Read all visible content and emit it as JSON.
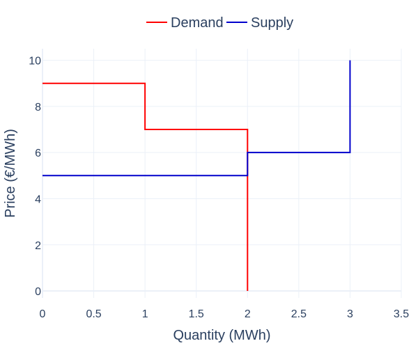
{
  "chart_data": {
    "type": "line",
    "line_shape": "step",
    "title": "",
    "xlabel": "Quantity (MWh)",
    "ylabel": "Price (€/MWh)",
    "xlim": [
      0,
      3.5
    ],
    "ylim": [
      -0.3,
      10.5
    ],
    "x_ticks": [
      0,
      0.5,
      1,
      1.5,
      2,
      2.5,
      3,
      3.5
    ],
    "x_tick_labels": [
      "0",
      "0.5",
      "1",
      "1.5",
      "2",
      "2.5",
      "3",
      "3.5"
    ],
    "y_ticks": [
      0,
      2,
      4,
      6,
      8,
      10
    ],
    "y_tick_labels": [
      "0",
      "2",
      "4",
      "6",
      "8",
      "10"
    ],
    "grid": true,
    "legend": "top-center, horizontal",
    "series": [
      {
        "name": "Demand",
        "color": "#ff0000",
        "points": [
          [
            0,
            9
          ],
          [
            1,
            9
          ],
          [
            1,
            7
          ],
          [
            2,
            7
          ],
          [
            2,
            0
          ]
        ]
      },
      {
        "name": "Supply",
        "color": "#0000cc",
        "points": [
          [
            0,
            5
          ],
          [
            2,
            5
          ],
          [
            2,
            6
          ],
          [
            3,
            6
          ],
          [
            3,
            10
          ]
        ]
      }
    ]
  }
}
